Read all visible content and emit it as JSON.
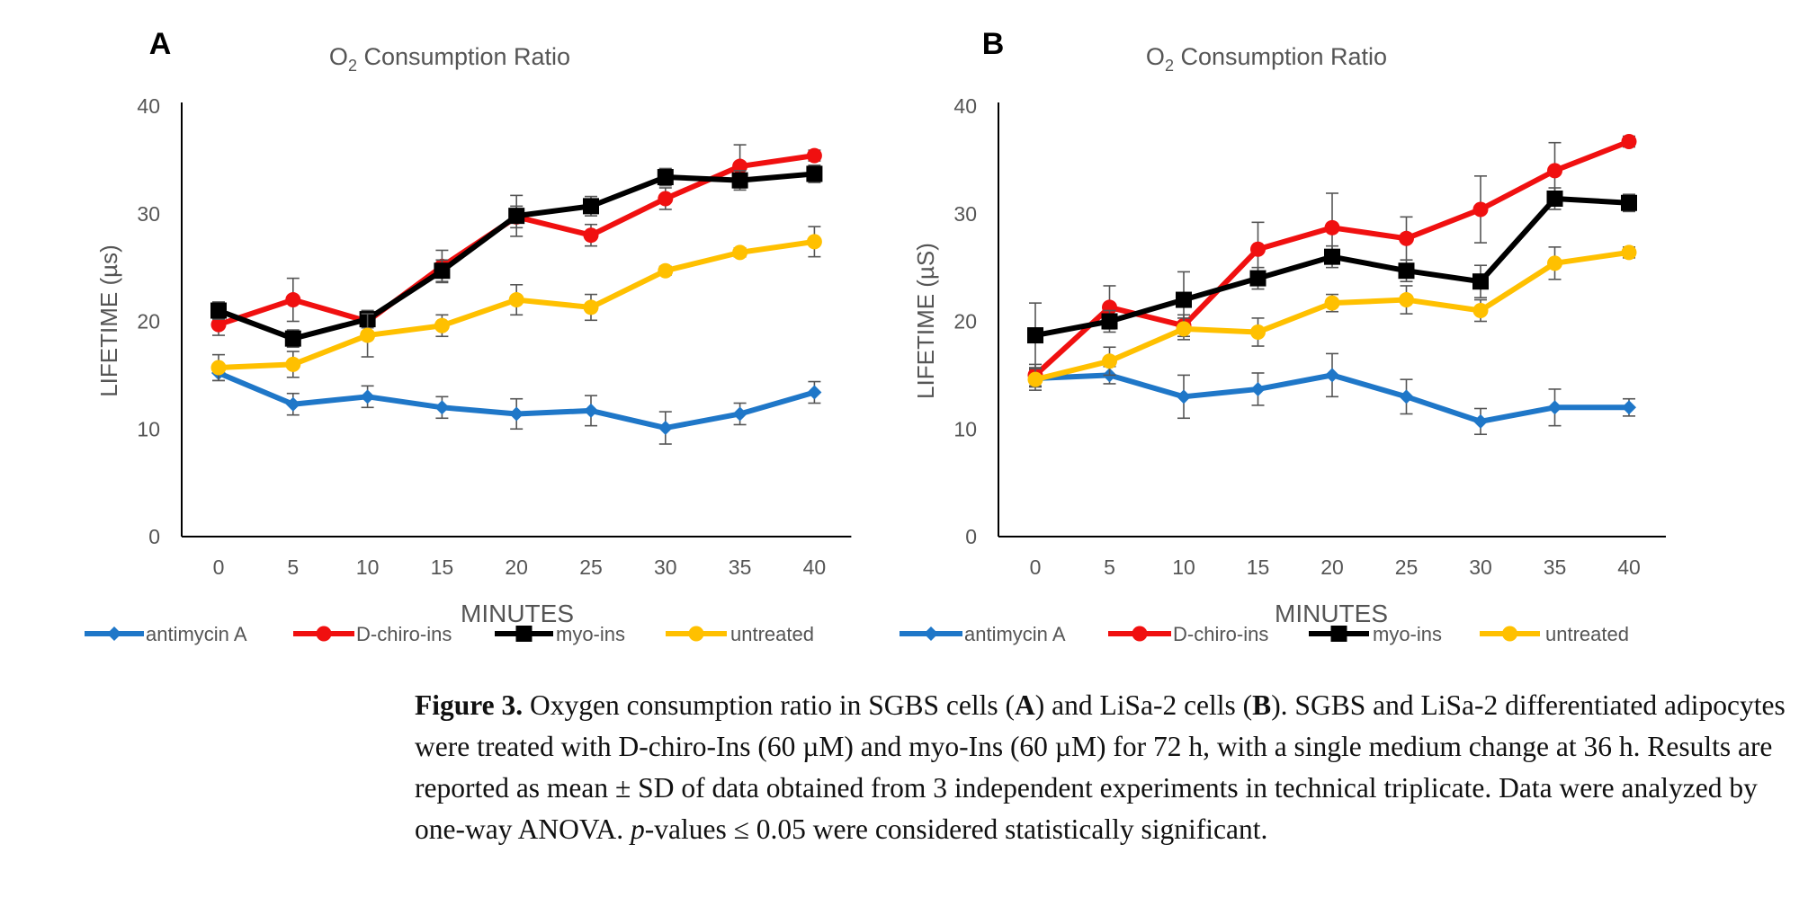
{
  "colors": {
    "antimycin": "#1F77C8",
    "dchiro": "#F01010",
    "myo": "#000000",
    "untreated": "#FFC000",
    "axis": "#000000",
    "tick_text": "#555555"
  },
  "chart_data": [
    {
      "panel": "A",
      "type": "line",
      "title_main": "O",
      "title_sub": "2",
      "title_rest": " Consumption Ratio",
      "xlabel": "MINUTES",
      "ylabel": "LIFETIME (µs)",
      "x": [
        0,
        5,
        10,
        15,
        20,
        25,
        30,
        35,
        40
      ],
      "xticks": [
        "0",
        "5",
        "10",
        "15",
        "20",
        "25",
        "30",
        "35",
        "40"
      ],
      "ylim": [
        0,
        40
      ],
      "yticks": [
        "0",
        "10",
        "20",
        "30",
        "40"
      ],
      "grid": false,
      "legend_position": "bottom",
      "series": [
        {
          "name": "antimycin A",
          "marker": "diamond",
          "color_key": "antimycin",
          "values": [
            15.2,
            12.3,
            13.0,
            12.0,
            11.4,
            11.7,
            10.1,
            11.4,
            13.4
          ],
          "errors": [
            0.7,
            1.0,
            1.0,
            1.0,
            1.4,
            1.4,
            1.5,
            1.0,
            1.0
          ]
        },
        {
          "name": "D-chiro-ins",
          "marker": "circle",
          "color_key": "dchiro",
          "values": [
            19.7,
            22.0,
            20.0,
            25.1,
            29.7,
            28.0,
            31.4,
            34.4,
            35.4
          ],
          "errors": [
            1.0,
            2.0,
            1.0,
            1.5,
            1.0,
            1.0,
            1.0,
            2.0,
            0.5
          ]
        },
        {
          "name": "myo-ins",
          "marker": "square",
          "color_key": "myo",
          "values": [
            21.0,
            18.4,
            20.2,
            24.7,
            29.8,
            30.7,
            33.4,
            33.1,
            33.7
          ],
          "errors": [
            0.8,
            0.8,
            0.8,
            1.0,
            1.9,
            0.9,
            0.8,
            0.9,
            0.8
          ]
        },
        {
          "name": "untreated",
          "marker": "circle",
          "color_key": "untreated",
          "values": [
            15.7,
            16.0,
            18.7,
            19.6,
            22.0,
            21.3,
            24.7,
            26.4,
            27.4
          ],
          "errors": [
            1.2,
            1.2,
            2.0,
            1.0,
            1.4,
            1.2,
            0.4,
            0.4,
            1.4
          ]
        }
      ]
    },
    {
      "panel": "B",
      "type": "line",
      "title_main": "O",
      "title_sub": "2",
      "title_rest": " Consumption Ratio",
      "xlabel": "MINUTES",
      "ylabel": "LIFETIME (µS)",
      "x": [
        0,
        5,
        10,
        15,
        20,
        25,
        30,
        35,
        40
      ],
      "xticks": [
        "0",
        "5",
        "10",
        "15",
        "20",
        "25",
        "30",
        "35",
        "40"
      ],
      "ylim": [
        0,
        40
      ],
      "yticks": [
        "0",
        "10",
        "20",
        "30",
        "40"
      ],
      "grid": false,
      "legend_position": "bottom",
      "series": [
        {
          "name": "antimycin A",
          "marker": "diamond",
          "color_key": "antimycin",
          "values": [
            14.7,
            15.0,
            13.0,
            13.7,
            15.0,
            13.0,
            10.7,
            12.0,
            12.0
          ],
          "errors": [
            0.8,
            0.8,
            2.0,
            1.5,
            2.0,
            1.6,
            1.2,
            1.7,
            0.8
          ]
        },
        {
          "name": "D-chiro-ins",
          "marker": "circle",
          "color_key": "dchiro",
          "values": [
            15.0,
            21.3,
            19.6,
            26.7,
            28.7,
            27.7,
            30.4,
            34.0,
            36.7
          ],
          "errors": [
            1.0,
            2.0,
            1.0,
            2.5,
            3.2,
            2.0,
            3.1,
            2.6,
            0.5
          ]
        },
        {
          "name": "myo-ins",
          "marker": "square",
          "color_key": "myo",
          "values": [
            18.7,
            20.0,
            22.0,
            24.0,
            26.0,
            24.7,
            23.7,
            31.4,
            31.0
          ],
          "errors": [
            3.0,
            1.0,
            2.6,
            1.0,
            1.0,
            1.0,
            1.5,
            1.0,
            0.8
          ]
        },
        {
          "name": "untreated",
          "marker": "circle",
          "color_key": "untreated",
          "values": [
            14.6,
            16.3,
            19.3,
            19.0,
            21.7,
            22.0,
            21.0,
            25.4,
            26.4
          ],
          "errors": [
            1.0,
            1.3,
            1.0,
            1.3,
            0.8,
            1.3,
            1.0,
            1.5,
            0.5
          ]
        }
      ]
    }
  ],
  "caption": {
    "label": "Figure 3.",
    "text_1": " Oxygen consumption ratio in SGBS cells (",
    "bold_a": "A",
    "text_2": ") and LiSa-2 cells (",
    "bold_b": "B",
    "text_3": "). SGBS and LiSa-2 differentiated adipocytes were treated with D-chiro-Ins (60 µM) and myo-Ins (60 µM) for 72 h, with a single medium change at 36 h. Results are reported as mean ± SD of data obtained from 3 independent experiments in technical triplicate. Data were analyzed by one-way ANOVA. ",
    "italic_p": "p",
    "text_4": "-values ≤ 0.05 were considered statistically significant."
  }
}
